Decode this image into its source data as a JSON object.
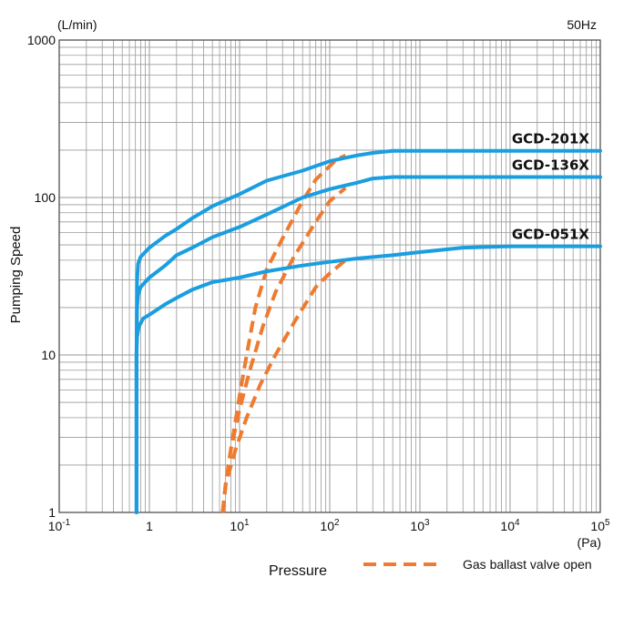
{
  "chart_data": {
    "type": "line",
    "xlabel": "Pressure",
    "xunit": "(Pa)",
    "ylabel": "Pumping Speed",
    "yunit": "(L/min)",
    "frequency": "50Hz",
    "xscale": "log",
    "yscale": "log",
    "xlim": [
      0.1,
      100000
    ],
    "ylim": [
      1,
      1000
    ],
    "grid": true,
    "x_ticks": [
      {
        "base": "10",
        "exp": "-1"
      },
      {
        "base": "1",
        "exp": ""
      },
      {
        "base": "10",
        "exp": "1"
      },
      {
        "base": "10",
        "exp": "2"
      },
      {
        "base": "10",
        "exp": "3"
      },
      {
        "base": "10",
        "exp": "4"
      },
      {
        "base": "10",
        "exp": "5"
      }
    ],
    "y_ticks": [
      "1",
      "10",
      "100",
      "1000"
    ],
    "colors": {
      "series": "#1a9ee0",
      "gas_ballast": "#ee7b30",
      "grid": "#9a9a9a"
    },
    "legend": {
      "label": "Gas ballast valve open",
      "style": "dashed",
      "placement": "bottom-right"
    },
    "series": [
      {
        "name": "GCD-201X",
        "points": [
          [
            0.72,
            1
          ],
          [
            0.72,
            10
          ],
          [
            0.73,
            30
          ],
          [
            0.75,
            38
          ],
          [
            0.8,
            42
          ],
          [
            1.0,
            48
          ],
          [
            1.5,
            57
          ],
          [
            2,
            63
          ],
          [
            3,
            74
          ],
          [
            5,
            88
          ],
          [
            10,
            105
          ],
          [
            20,
            128
          ],
          [
            50,
            148
          ],
          [
            100,
            170
          ],
          [
            200,
            185
          ],
          [
            300,
            192
          ],
          [
            500,
            198
          ],
          [
            1000,
            198
          ],
          [
            10000,
            198
          ],
          [
            100000,
            198
          ]
        ]
      },
      {
        "name": "GCD-136X",
        "points": [
          [
            0.72,
            1
          ],
          [
            0.72,
            10
          ],
          [
            0.73,
            20
          ],
          [
            0.75,
            24
          ],
          [
            0.8,
            27
          ],
          [
            1.0,
            31
          ],
          [
            1.5,
            37
          ],
          [
            2,
            43
          ],
          [
            3,
            48
          ],
          [
            5,
            56
          ],
          [
            10,
            65
          ],
          [
            20,
            78
          ],
          [
            50,
            100
          ],
          [
            100,
            113
          ],
          [
            200,
            124
          ],
          [
            300,
            132
          ],
          [
            500,
            135
          ],
          [
            1000,
            135
          ],
          [
            10000,
            135
          ],
          [
            100000,
            135
          ]
        ]
      },
      {
        "name": "GCD-051X",
        "points": [
          [
            0.72,
            1
          ],
          [
            0.72,
            10
          ],
          [
            0.73,
            13
          ],
          [
            0.76,
            15
          ],
          [
            0.85,
            17
          ],
          [
            1.0,
            18
          ],
          [
            1.5,
            21
          ],
          [
            2,
            23
          ],
          [
            3,
            26
          ],
          [
            5,
            29
          ],
          [
            10,
            31
          ],
          [
            20,
            34
          ],
          [
            50,
            37
          ],
          [
            100,
            39
          ],
          [
            200,
            41
          ],
          [
            500,
            43
          ],
          [
            1000,
            45
          ],
          [
            3000,
            48
          ],
          [
            10000,
            49
          ],
          [
            100000,
            49
          ]
        ]
      }
    ],
    "gas_ballast_curves": [
      {
        "points": [
          [
            6.5,
            1
          ],
          [
            7,
            1.5
          ],
          [
            8,
            2.5
          ],
          [
            10,
            5.5
          ],
          [
            12,
            10
          ],
          [
            15,
            20
          ],
          [
            20,
            35
          ],
          [
            30,
            55
          ],
          [
            50,
            95
          ],
          [
            70,
            130
          ],
          [
            120,
            175
          ],
          [
            150,
            185
          ]
        ]
      },
      {
        "points": [
          [
            6.5,
            1
          ],
          [
            7,
            1.5
          ],
          [
            8,
            2.5
          ],
          [
            10,
            4.5
          ],
          [
            13,
            8
          ],
          [
            18,
            15
          ],
          [
            25,
            25
          ],
          [
            40,
            42
          ],
          [
            70,
            70
          ],
          [
            100,
            95
          ],
          [
            150,
            115
          ]
        ]
      },
      {
        "points": [
          [
            6.5,
            1
          ],
          [
            7,
            1.5
          ],
          [
            9,
            2.5
          ],
          [
            12,
            4
          ],
          [
            17,
            6.5
          ],
          [
            25,
            10
          ],
          [
            40,
            16
          ],
          [
            70,
            27
          ],
          [
            100,
            33
          ],
          [
            150,
            40
          ]
        ]
      }
    ]
  }
}
